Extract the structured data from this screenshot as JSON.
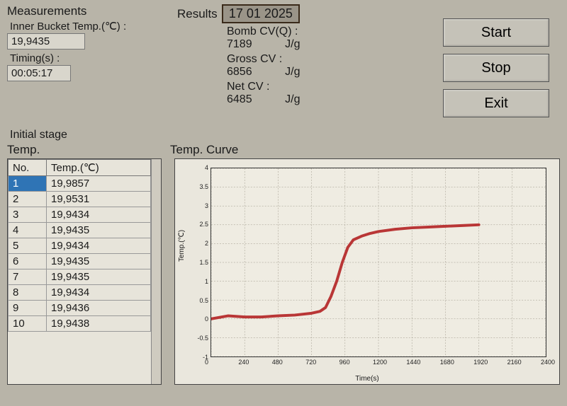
{
  "measurements": {
    "header": "Measurements",
    "temp_label": "Inner Bucket Temp.(℃) :",
    "temp_value": "19,9435",
    "timing_label": "Timing(s) :",
    "timing_value": "00:05:17"
  },
  "results": {
    "header": "Results",
    "date": "17 01 2025",
    "bomb_label": "Bomb CV(Q) :",
    "bomb_value": "7189",
    "bomb_unit": "J/g",
    "gross_label": "Gross CV :",
    "gross_value": "6856",
    "gross_unit": "J/g",
    "net_label": "Net CV :",
    "net_value": "6485",
    "net_unit": "J/g"
  },
  "buttons": {
    "start": "Start",
    "stop": "Stop",
    "exit": "Exit"
  },
  "status": "Initial stage",
  "section_labels": {
    "temp": "Temp.",
    "curve": "Temp. Curve"
  },
  "table": {
    "col_no": "No.",
    "col_temp": "Temp.(℃)",
    "rows": [
      {
        "no": "1",
        "temp": "19,9857",
        "selected": true
      },
      {
        "no": "2",
        "temp": "19,9531",
        "selected": false
      },
      {
        "no": "3",
        "temp": "19,9434",
        "selected": false
      },
      {
        "no": "4",
        "temp": "19,9435",
        "selected": false
      },
      {
        "no": "5",
        "temp": "19,9434",
        "selected": false
      },
      {
        "no": "6",
        "temp": "19,9435",
        "selected": false
      },
      {
        "no": "7",
        "temp": "19,9435",
        "selected": false
      },
      {
        "no": "8",
        "temp": "19,9434",
        "selected": false
      },
      {
        "no": "9",
        "temp": "19,9436",
        "selected": false
      },
      {
        "no": "10",
        "temp": "19,9438",
        "selected": false
      }
    ]
  },
  "chart": {
    "type": "line",
    "xlabel": "Time(s)",
    "ylabel": "Temp.(℃)",
    "xlim": [
      0,
      2400
    ],
    "ylim": [
      -1,
      4
    ],
    "xtick_step": 240,
    "ytick_step": 0.5,
    "line_color": "#b93636",
    "line_width": 4,
    "grid_color": "#9b9688",
    "background_color": "#efece2",
    "axis_fontsize": 9,
    "label_fontsize": 10,
    "points": [
      [
        0,
        0
      ],
      [
        120,
        0.08
      ],
      [
        240,
        0.05
      ],
      [
        360,
        0.05
      ],
      [
        480,
        0.08
      ],
      [
        600,
        0.1
      ],
      [
        720,
        0.15
      ],
      [
        780,
        0.2
      ],
      [
        820,
        0.3
      ],
      [
        860,
        0.6
      ],
      [
        900,
        1.0
      ],
      [
        940,
        1.5
      ],
      [
        980,
        1.9
      ],
      [
        1020,
        2.1
      ],
      [
        1080,
        2.2
      ],
      [
        1140,
        2.27
      ],
      [
        1200,
        2.32
      ],
      [
        1320,
        2.38
      ],
      [
        1440,
        2.42
      ],
      [
        1560,
        2.44
      ],
      [
        1680,
        2.46
      ],
      [
        1800,
        2.48
      ],
      [
        1920,
        2.5
      ]
    ]
  }
}
